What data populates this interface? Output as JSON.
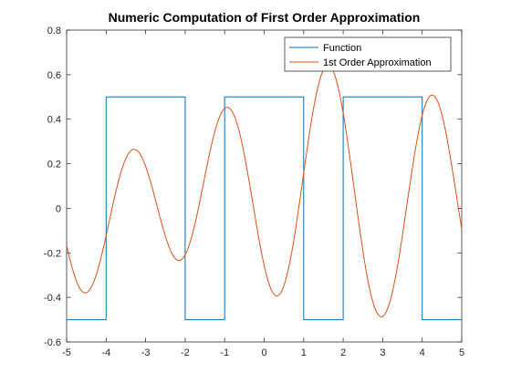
{
  "chart_data": {
    "type": "line",
    "title": "Numeric Computation of First Order Approximation",
    "xlabel": "",
    "ylabel": "",
    "xlim": [
      -5,
      5
    ],
    "ylim": [
      -0.6,
      0.8
    ],
    "x_ticks": [
      -5,
      -4,
      -3,
      -2,
      -1,
      0,
      1,
      2,
      3,
      4,
      5
    ],
    "y_ticks": [
      -0.6,
      -0.4,
      -0.2,
      0,
      0.2,
      0.4,
      0.6,
      0.8
    ],
    "grid": false,
    "legend_position": "top-right",
    "series": [
      {
        "name": "Function",
        "color": "#0072BD",
        "kind": "step",
        "x": [
          -5,
          -4,
          -4,
          -2,
          -2,
          -1,
          -1,
          1,
          1,
          2,
          2,
          4,
          4,
          5
        ],
        "y": [
          -0.5,
          -0.5,
          0.5,
          0.5,
          -0.5,
          -0.5,
          0.5,
          0.5,
          -0.5,
          -0.5,
          0.5,
          0.5,
          -0.5,
          -0.5
        ]
      },
      {
        "name": "1st Order Approximation",
        "color": "#D95319",
        "kind": "sampled",
        "x": [
          -5,
          -4.9,
          -4.8,
          -4.7,
          -4.6,
          -4.5,
          -4.4,
          -4.3,
          -4.2,
          -4.1,
          -4,
          -3.9,
          -3.8,
          -3.7,
          -3.6,
          -3.5,
          -3.4,
          -3.3,
          -3.2,
          -3.1,
          -3,
          -2.9,
          -2.8,
          -2.7,
          -2.6,
          -2.5,
          -2.4,
          -2.3,
          -2.2,
          -2.1,
          -2,
          -1.9,
          -1.8,
          -1.7,
          -1.6,
          -1.5,
          -1.4,
          -1.3,
          -1.2,
          -1.1,
          -1,
          -0.9,
          -0.8,
          -0.7,
          -0.6,
          -0.5,
          -0.4,
          -0.3,
          -0.2,
          -0.1,
          0,
          0.1,
          0.2,
          0.3,
          0.4,
          0.5,
          0.6,
          0.7,
          0.8,
          0.9,
          1,
          1.1,
          1.2,
          1.3,
          1.4,
          1.5,
          1.6,
          1.7,
          1.8,
          1.9,
          2,
          2.1,
          2.2,
          2.3,
          2.4,
          2.5,
          2.6,
          2.7,
          2.8,
          2.9,
          3,
          3.1,
          3.2,
          3.3,
          3.4,
          3.5,
          3.6,
          3.7,
          3.8,
          3.9,
          4,
          4.1,
          4.2,
          4.3,
          4.4,
          4.5,
          4.6,
          4.7,
          4.8,
          4.9,
          5
        ],
        "y": [
          -0.1667,
          -0.2399,
          -0.3019,
          -0.3477,
          -0.374,
          -0.3789,
          -0.362,
          -0.3246,
          -0.2694,
          -0.2004,
          -0.1223,
          -0.0404,
          0.0396,
          0.1133,
          0.1759,
          0.2236,
          0.2537,
          0.2647,
          0.2564,
          0.2302,
          0.1883,
          0.1337,
          0.0705,
          0.0031,
          -0.0637,
          -0.1251,
          -0.1765,
          -0.2134,
          -0.2325,
          -0.2315,
          -0.2092,
          -0.1662,
          -0.105,
          -0.0293,
          0.0558,
          0.1445,
          0.2309,
          0.3092,
          0.3744,
          0.4221,
          0.4487,
          0.4522,
          0.4316,
          0.3875,
          0.3218,
          0.2381,
          0.141,
          0.0365,
          -0.0693,
          -0.1692,
          -0.2569,
          -0.3265,
          -0.373,
          -0.393,
          -0.3845,
          -0.3473,
          -0.283,
          -0.1949,
          -0.0877,
          0.0323,
          0.1577,
          0.2815,
          0.3962,
          0.4949,
          0.5717,
          0.6218,
          0.6422,
          0.6316,
          0.5905,
          0.5212,
          0.4276,
          0.3148,
          0.1893,
          0.0581,
          -0.0716,
          -0.193,
          -0.2997,
          -0.3859,
          -0.4474,
          -0.4811,
          -0.4856,
          -0.4606,
          -0.408,
          -0.3306,
          -0.2329,
          -0.1203,
          0.0002,
          0.1212,
          0.2354,
          0.3362,
          0.4177,
          0.475,
          0.5047,
          0.5049,
          0.4759,
          0.4197,
          0.3401,
          0.2421,
          0.1324,
          0.018,
          -0.0938
        ]
      }
    ]
  }
}
